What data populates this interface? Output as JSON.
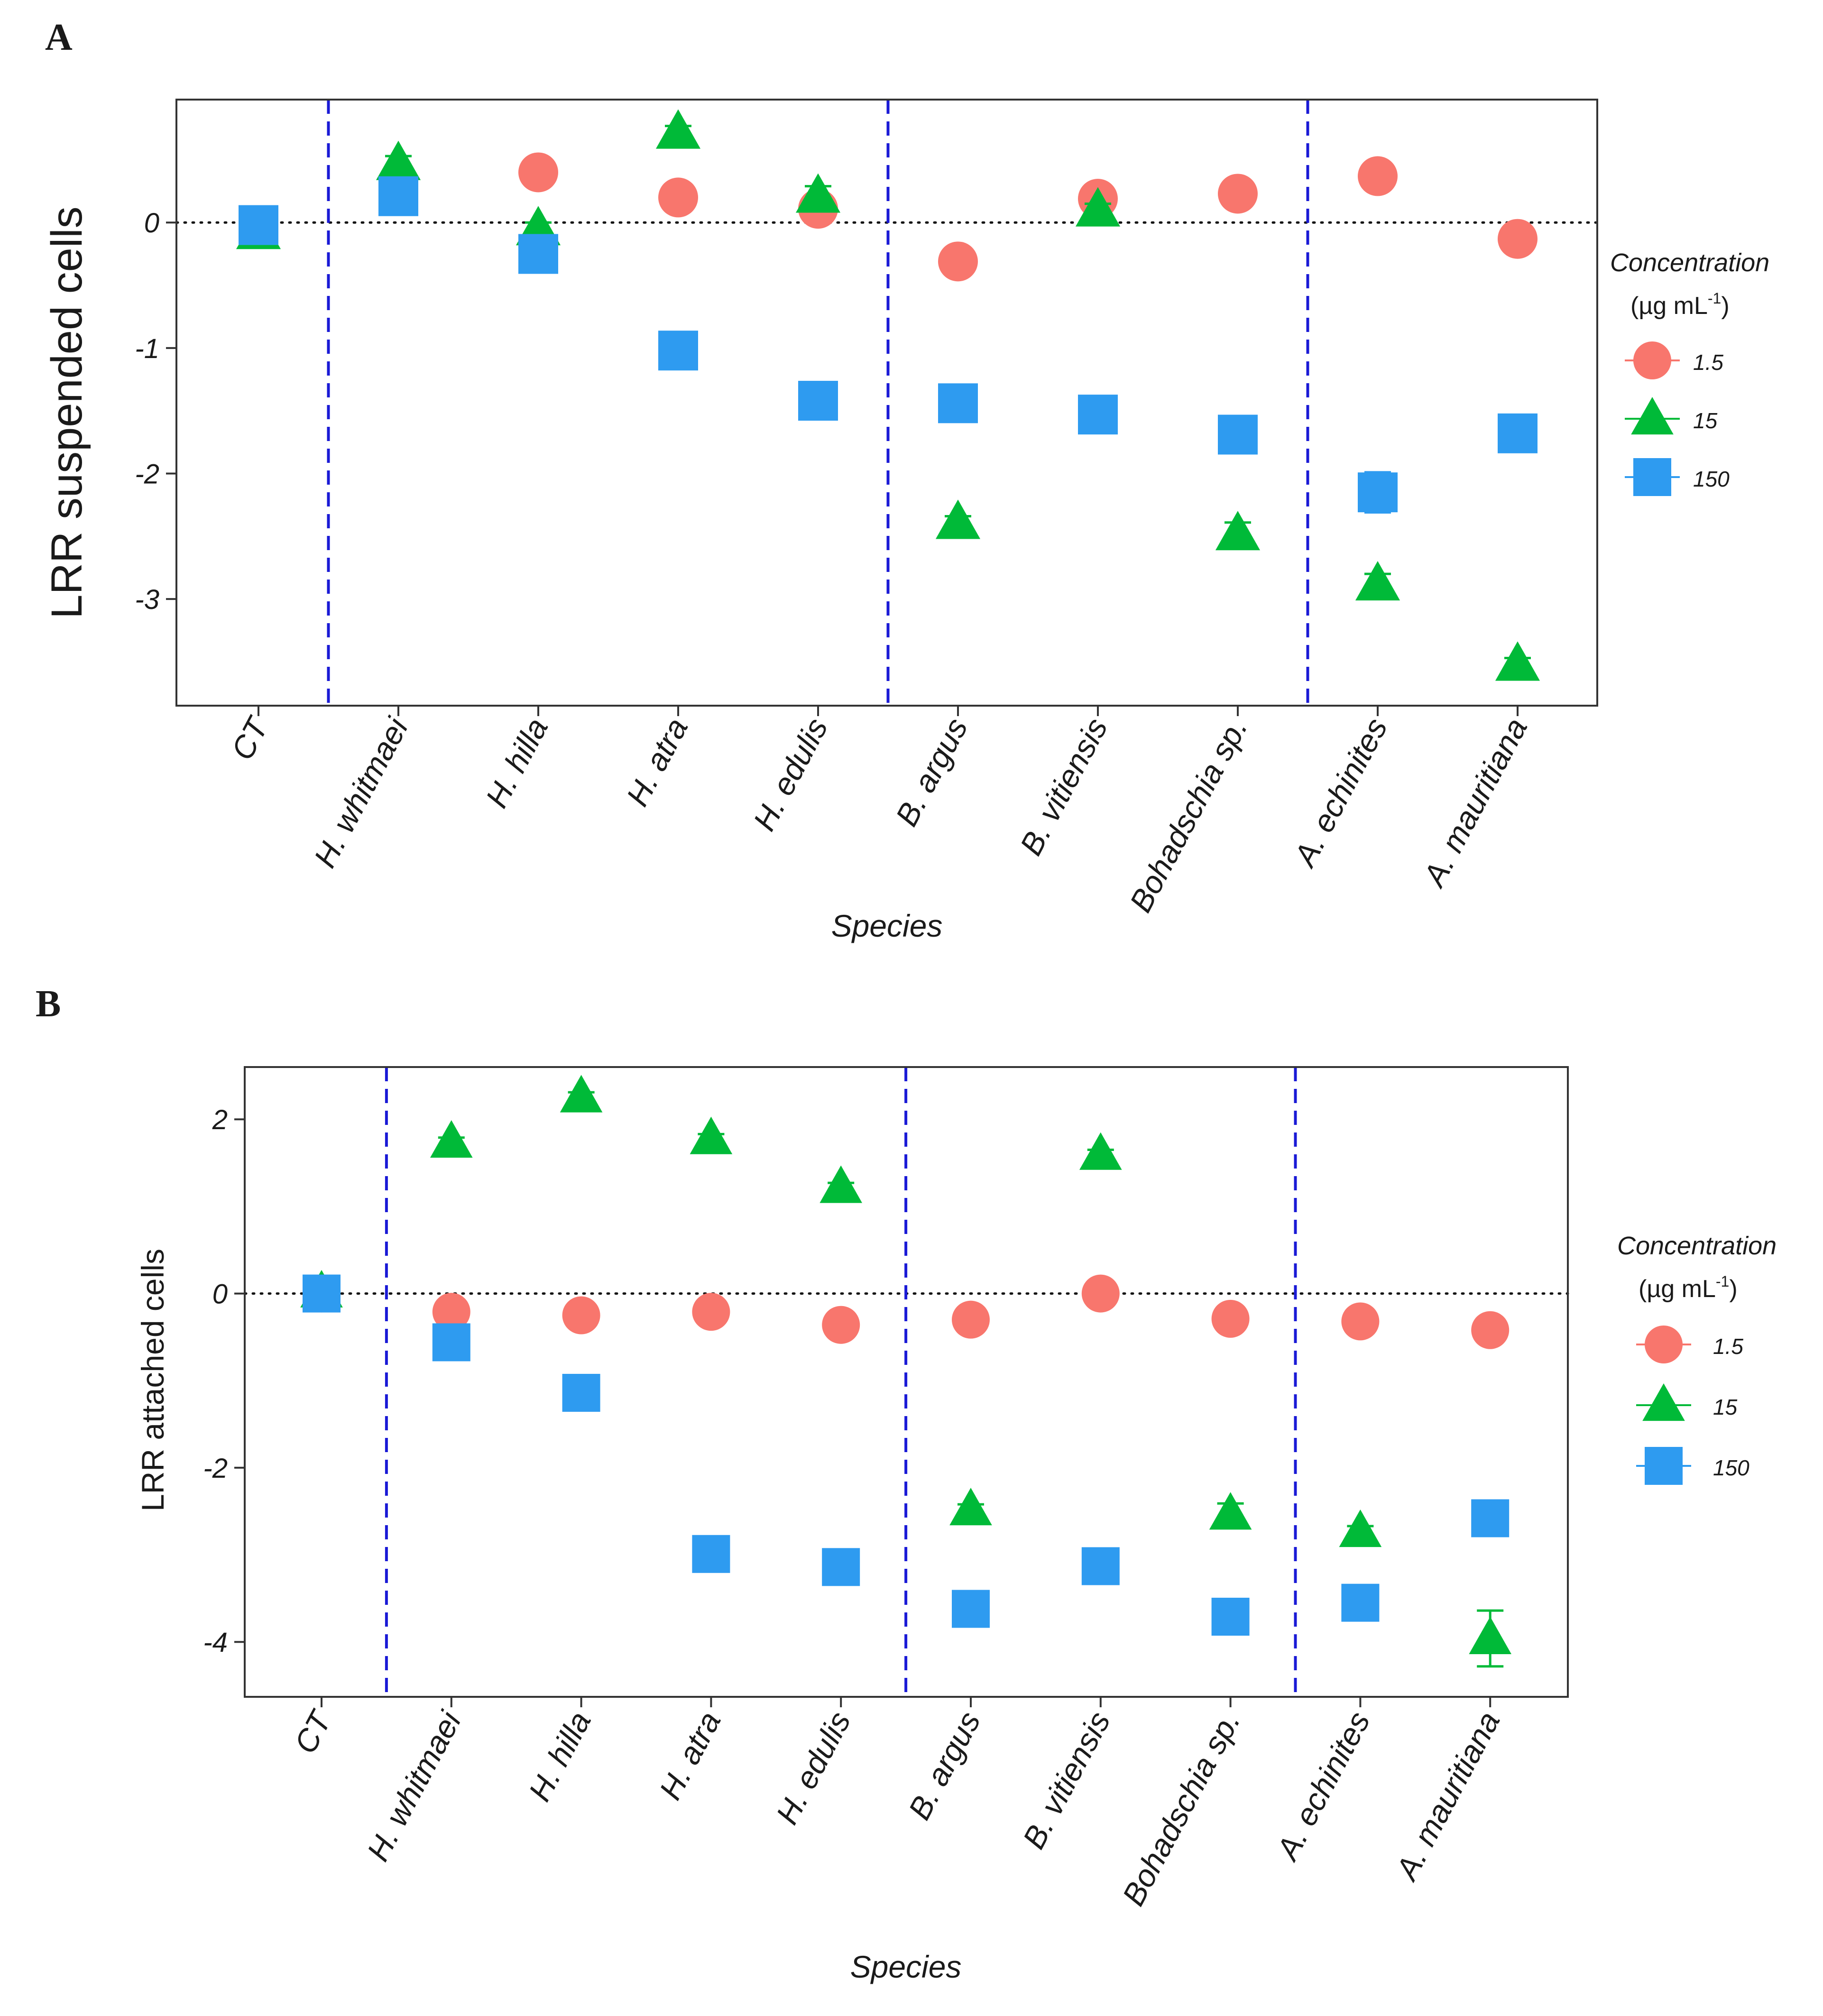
{
  "colors": {
    "c1_5": "#F8766D",
    "c15": "#00BA38",
    "c150": "#2E9BF0",
    "divider": "#1a1ad6",
    "axis": "#333333"
  },
  "legend": {
    "title": "Concentration",
    "unit_pre": "(µg mL",
    "unit_sup": "-1",
    "unit_post": ")",
    "labels": [
      "1.5",
      "15",
      "150"
    ]
  },
  "chart_data": [
    {
      "type": "scatter",
      "panel": "A",
      "xlabel": "Species",
      "ylabel": "LRR suspended cells",
      "ylim": [
        -3.85,
        0.98
      ],
      "yticks": [
        -3,
        -2,
        -1,
        0
      ],
      "ytick_labels": [
        "-3",
        "-2",
        "-1",
        "0"
      ],
      "categories": [
        "CT",
        "H. whitmaei",
        "H. hilla",
        "H. atra",
        "H. edulis",
        "B. argus",
        "B. vitiensis",
        "Bohadschia sp.",
        "A. echinites",
        "A. mauritiana"
      ],
      "group_dividers_after": [
        0,
        4,
        7
      ],
      "series": [
        {
          "name": "1.5",
          "values": [
            -0.05,
            0.32,
            0.4,
            0.2,
            0.11,
            -0.31,
            0.19,
            0.23,
            0.37,
            -0.13
          ],
          "errors": [
            0.04,
            0.06,
            0.03,
            0.03,
            0.05,
            0.03,
            0.03,
            0.04,
            0.03,
            0.03
          ]
        },
        {
          "name": "15",
          "values": [
            -0.08,
            0.47,
            -0.05,
            0.72,
            0.21,
            -2.39,
            0.1,
            -2.48,
            -2.88,
            -3.52
          ],
          "errors": [
            0.08,
            0.06,
            0.05,
            0.05,
            0.08,
            0.05,
            0.05,
            0.09,
            0.08,
            0.05
          ]
        },
        {
          "name": "150",
          "values": [
            -0.02,
            0.21,
            -0.25,
            -1.02,
            -1.42,
            -1.44,
            -1.53,
            -1.69,
            -2.15,
            -1.68
          ],
          "errors": [
            0.05,
            0.04,
            0.03,
            0.03,
            0.03,
            0.03,
            0.03,
            0.03,
            0.16,
            0.03
          ]
        }
      ]
    },
    {
      "type": "scatter",
      "panel": "B",
      "xlabel": "Species",
      "ylabel": "LRR attached cells",
      "ylim": [
        -4.63,
        2.6
      ],
      "yticks": [
        -4,
        -2,
        0,
        2
      ],
      "ytick_labels": [
        "-4",
        "-2",
        "0",
        "2"
      ],
      "categories": [
        "CT",
        "H. whitmaei",
        "H. hilla",
        "H. atra",
        "H. edulis",
        "B. argus",
        "B. vitiensis",
        "Bohadschia sp.",
        "A. echinites",
        "A. mauritiana"
      ],
      "group_dividers_after": [
        0,
        4,
        7
      ],
      "series": [
        {
          "name": "1.5",
          "values": [
            0.0,
            -0.21,
            -0.25,
            -0.21,
            -0.36,
            -0.3,
            0.0,
            -0.29,
            -0.32,
            -0.42
          ],
          "errors": [
            0.03,
            0.04,
            0.03,
            0.03,
            0.04,
            0.03,
            0.03,
            0.03,
            0.03,
            0.03
          ]
        },
        {
          "name": "15",
          "values": [
            0.02,
            1.74,
            2.26,
            1.78,
            1.22,
            -2.48,
            1.6,
            -2.53,
            -2.73,
            -3.96
          ],
          "errors": [
            0.06,
            0.05,
            0.05,
            0.05,
            0.05,
            0.06,
            0.05,
            0.12,
            0.06,
            0.32
          ]
        },
        {
          "name": "150",
          "values": [
            0.0,
            -0.56,
            -1.14,
            -2.99,
            -3.14,
            -3.62,
            -3.13,
            -3.71,
            -3.55,
            -2.58
          ],
          "errors": [
            0.05,
            0.04,
            0.04,
            0.04,
            0.04,
            0.04,
            0.04,
            0.04,
            0.04,
            0.04
          ]
        }
      ]
    }
  ]
}
